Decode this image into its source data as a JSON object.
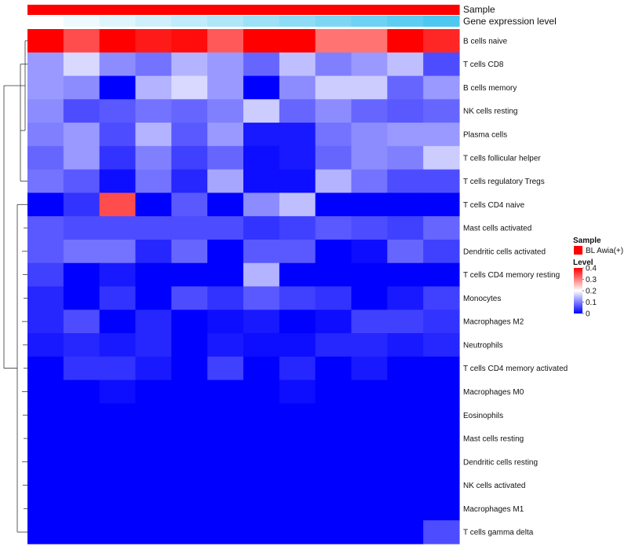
{
  "chart_data": {
    "type": "heatmap",
    "annotation_rows": [
      "Sample",
      "Gene expression level"
    ],
    "row_labels": [
      "B cells naive",
      "T cells CD8",
      "B cells memory",
      "NK cells resting",
      "Plasma cells",
      "T cells follicular helper",
      "T cells regulatory  Tregs",
      "T cells CD4 naive",
      "Mast cells activated",
      "Dendritic cells activated",
      "T cells CD4 memory resting",
      "Monocytes",
      "Macrophages M2",
      "Neutrophils",
      "T cells CD4 memory activated",
      "Macrophages M0",
      "Eosinophils",
      "Mast cells resting",
      "Dendritic cells resting",
      "NK cells activated",
      "Macrophages M1",
      "T cells gamma delta"
    ],
    "n_columns": 12,
    "values": [
      [
        0.42,
        0.34,
        0.41,
        0.38,
        0.39,
        0.33,
        0.42,
        0.42,
        0.31,
        0.31,
        0.4,
        0.37
      ],
      [
        0.12,
        0.17,
        0.11,
        0.09,
        0.14,
        0.12,
        0.08,
        0.15,
        0.1,
        0.12,
        0.15,
        0.06
      ],
      [
        0.12,
        0.11,
        0.0,
        0.14,
        0.17,
        0.12,
        0.0,
        0.11,
        0.16,
        0.16,
        0.08,
        0.12
      ],
      [
        0.11,
        0.06,
        0.07,
        0.09,
        0.08,
        0.1,
        0.16,
        0.08,
        0.11,
        0.08,
        0.07,
        0.08
      ],
      [
        0.1,
        0.12,
        0.06,
        0.14,
        0.07,
        0.12,
        0.02,
        0.02,
        0.09,
        0.11,
        0.12,
        0.12
      ],
      [
        0.08,
        0.12,
        0.04,
        0.1,
        0.05,
        0.08,
        0.01,
        0.02,
        0.08,
        0.11,
        0.1,
        0.16
      ],
      [
        0.09,
        0.07,
        0.01,
        0.09,
        0.03,
        0.13,
        0.01,
        0.01,
        0.14,
        0.09,
        0.06,
        0.06
      ],
      [
        0.0,
        0.04,
        0.34,
        0.0,
        0.07,
        0.0,
        0.11,
        0.15,
        0.0,
        0.0,
        0.0,
        0.0
      ],
      [
        0.07,
        0.06,
        0.06,
        0.06,
        0.06,
        0.06,
        0.04,
        0.05,
        0.07,
        0.06,
        0.05,
        0.08
      ],
      [
        0.07,
        0.09,
        0.09,
        0.03,
        0.08,
        0.0,
        0.07,
        0.07,
        0.0,
        0.01,
        0.08,
        0.05
      ],
      [
        0.05,
        0.0,
        0.02,
        0.0,
        0.0,
        0.0,
        0.14,
        0.0,
        0.0,
        0.0,
        0.0,
        0.0
      ],
      [
        0.03,
        0.0,
        0.04,
        0.0,
        0.06,
        0.04,
        0.07,
        0.05,
        0.04,
        0.0,
        0.02,
        0.05
      ],
      [
        0.03,
        0.06,
        0.0,
        0.03,
        0.0,
        0.01,
        0.02,
        0.0,
        0.01,
        0.05,
        0.05,
        0.04
      ],
      [
        0.02,
        0.03,
        0.02,
        0.03,
        0.0,
        0.02,
        0.01,
        0.01,
        0.03,
        0.03,
        0.02,
        0.03
      ],
      [
        0.0,
        0.04,
        0.04,
        0.02,
        0.0,
        0.05,
        0.0,
        0.03,
        0.0,
        0.02,
        0.0,
        0.0
      ],
      [
        0.0,
        0.0,
        0.01,
        0.0,
        0.0,
        0.0,
        0.0,
        0.01,
        0.0,
        0.0,
        0.0,
        0.0
      ],
      [
        0.0,
        0.0,
        0.0,
        0.0,
        0.0,
        0.0,
        0.0,
        0.0,
        0.0,
        0.0,
        0.0,
        0.0
      ],
      [
        0.0,
        0.0,
        0.0,
        0.0,
        0.0,
        0.0,
        0.0,
        0.0,
        0.0,
        0.0,
        0.0,
        0.0
      ],
      [
        0.0,
        0.0,
        0.0,
        0.0,
        0.0,
        0.0,
        0.0,
        0.0,
        0.0,
        0.0,
        0.0,
        0.0
      ],
      [
        0.0,
        0.0,
        0.0,
        0.0,
        0.0,
        0.0,
        0.0,
        0.0,
        0.0,
        0.0,
        0.0,
        0.0
      ],
      [
        0.0,
        0.0,
        0.0,
        0.0,
        0.0,
        0.0,
        0.0,
        0.0,
        0.0,
        0.0,
        0.0,
        0.0
      ],
      [
        0.0,
        0.0,
        0.0,
        0.0,
        0.0,
        0.0,
        0.0,
        0.0,
        0.0,
        0.0,
        0.0,
        0.06
      ]
    ],
    "sample_annotation": [
      "BL Awia(+)",
      "BL Awia(+)",
      "BL Awia(+)",
      "BL Awia(+)",
      "BL Awia(+)",
      "BL Awia(+)",
      "BL Awia(+)",
      "BL Awia(+)",
      "BL Awia(+)",
      "BL Awia(+)",
      "BL Awia(+)",
      "BL Awia(+)"
    ],
    "gene_expression_level": [
      0.0,
      0.09,
      0.18,
      0.27,
      0.36,
      0.45,
      0.55,
      0.64,
      0.73,
      0.82,
      0.91,
      1.0
    ],
    "legend": {
      "sample_title": "Sample",
      "sample_label": "BL Awia(+)",
      "level_title": "Level",
      "level_ticks": [
        "0.4",
        "0.3",
        "0.2",
        "0.1",
        "0"
      ],
      "level_tick_values": [
        0.4,
        0.3,
        0.2,
        0.1,
        0.0
      ],
      "range": [
        0,
        0.4
      ]
    },
    "dendrogram": "row clustering (left side)"
  },
  "colors": {
    "low": "#0000ff",
    "mid": "#ffffff",
    "high": "#ff0000",
    "sample": "#ff0000",
    "gene_low": "#ffffff",
    "gene_high": "#4dc8f0"
  }
}
